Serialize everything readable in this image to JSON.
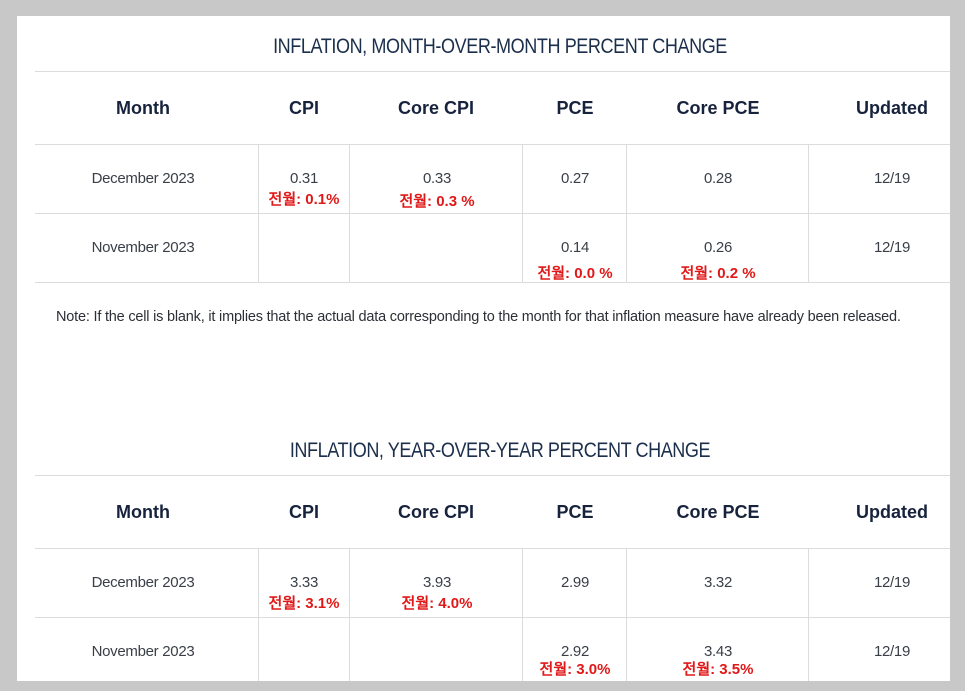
{
  "tables": [
    {
      "title": "INFLATION, MONTH-OVER-MONTH PERCENT CHANGE",
      "headers": [
        "Month",
        "CPI",
        "Core CPI",
        "PCE",
        "Core PCE",
        "Updated"
      ],
      "rows": [
        {
          "month": "December 2023",
          "cpi": "0.31",
          "cpi_prev": "전월: 0.1%",
          "core_cpi": "0.33",
          "core_cpi_prev": "전월: 0.3 %",
          "pce": "0.27",
          "pce_prev": "",
          "core_pce": "0.28",
          "core_pce_prev": "",
          "updated": "12/19"
        },
        {
          "month": "November 2023",
          "cpi": "",
          "cpi_prev": "",
          "core_cpi": "",
          "core_cpi_prev": "",
          "pce": "0.14",
          "pce_prev": "전월: 0.0 %",
          "core_pce": "0.26",
          "core_pce_prev": "전월: 0.2 %",
          "updated": "12/19"
        }
      ]
    },
    {
      "title": "INFLATION, YEAR-OVER-YEAR PERCENT CHANGE",
      "headers": [
        "Month",
        "CPI",
        "Core CPI",
        "PCE",
        "Core PCE",
        "Updated"
      ],
      "rows": [
        {
          "month": "December 2023",
          "cpi": "3.33",
          "cpi_prev": "전월: 3.1%",
          "core_cpi": "3.93",
          "core_cpi_prev": "전월: 4.0%",
          "pce": "2.99",
          "pce_prev": "",
          "core_pce": "3.32",
          "core_pce_prev": "",
          "updated": "12/19"
        },
        {
          "month": "November 2023",
          "cpi": "",
          "cpi_prev": "",
          "core_cpi": "",
          "core_cpi_prev": "",
          "pce": "2.92",
          "pce_prev": "전월: 3.0%",
          "core_pce": "3.43",
          "core_pce_prev": "전월: 3.5%",
          "updated": "12/19"
        }
      ]
    }
  ],
  "note": "Note: If the cell is blank, it implies that the actual data corresponding to the month for that inflation measure have already been released."
}
